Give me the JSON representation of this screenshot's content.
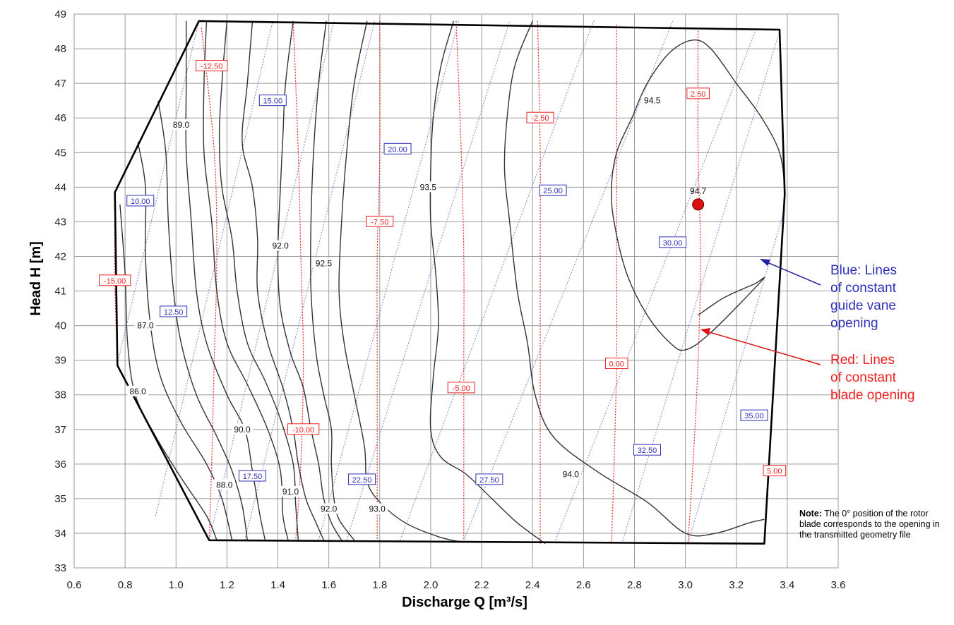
{
  "chart_data": {
    "type": "contour",
    "xlabel": "Discharge Q [m³/s]",
    "ylabel": "Head H [m]",
    "xlim": [
      0.6,
      3.6
    ],
    "ylim": [
      33,
      49
    ],
    "x_ticks": [
      "0.6",
      "0.8",
      "1.0",
      "1.2",
      "1.4",
      "1.6",
      "1.8",
      "2.0",
      "2.2",
      "2.4",
      "2.6",
      "2.8",
      "3.0",
      "3.2",
      "3.4",
      "3.6"
    ],
    "y_ticks": [
      "33",
      "34",
      "35",
      "36",
      "37",
      "38",
      "39",
      "40",
      "41",
      "42",
      "43",
      "44",
      "45",
      "46",
      "47",
      "48",
      "49"
    ],
    "grid": true,
    "operating_envelope": [
      [
        1.09,
        48.8
      ],
      [
        3.37,
        48.55
      ],
      [
        3.39,
        43.8
      ],
      [
        3.31,
        33.7
      ],
      [
        1.13,
        33.8
      ],
      [
        0.77,
        38.85
      ],
      [
        0.76,
        43.85
      ]
    ],
    "efficiency_contours": [
      {
        "label": "86.0",
        "points": [
          [
            0.78,
            43.5
          ],
          [
            0.8,
            41.5
          ],
          [
            0.81,
            39.5
          ],
          [
            0.84,
            38.0
          ],
          [
            0.92,
            36.8
          ],
          [
            1.02,
            35.6
          ],
          [
            1.12,
            34.5
          ],
          [
            1.16,
            33.8
          ]
        ]
      },
      {
        "label": "87.0",
        "points": [
          [
            0.85,
            45.3
          ],
          [
            0.88,
            44.0
          ],
          [
            0.88,
            42.0
          ],
          [
            0.9,
            40.0
          ],
          [
            0.94,
            38.5
          ],
          [
            1.02,
            37.2
          ],
          [
            1.12,
            36.0
          ],
          [
            1.18,
            35.0
          ],
          [
            1.22,
            33.8
          ]
        ]
      },
      {
        "label": "88.0",
        "points": [
          [
            0.93,
            46.5
          ],
          [
            0.96,
            45.0
          ],
          [
            0.97,
            43.0
          ],
          [
            0.99,
            41.0
          ],
          [
            1.02,
            39.5
          ],
          [
            1.08,
            38.0
          ],
          [
            1.16,
            36.8
          ],
          [
            1.22,
            35.8
          ],
          [
            1.26,
            34.8
          ],
          [
            1.28,
            33.8
          ]
        ]
      },
      {
        "label": "89.0",
        "points": [
          [
            1.04,
            48.8
          ],
          [
            1.04,
            47.0
          ],
          [
            1.04,
            45.0
          ],
          [
            1.06,
            43.0
          ],
          [
            1.08,
            41.0
          ],
          [
            1.12,
            39.5
          ],
          [
            1.2,
            38.0
          ],
          [
            1.27,
            37.0
          ],
          [
            1.3,
            35.8
          ],
          [
            1.33,
            34.5
          ],
          [
            1.35,
            33.8
          ]
        ]
      },
      {
        "label": "90.0",
        "points": [
          [
            1.12,
            48.8
          ],
          [
            1.11,
            47.0
          ],
          [
            1.11,
            45.0
          ],
          [
            1.14,
            43.0
          ],
          [
            1.16,
            41.0
          ],
          [
            1.2,
            39.5
          ],
          [
            1.28,
            38.3
          ],
          [
            1.36,
            37.0
          ],
          [
            1.41,
            35.8
          ],
          [
            1.42,
            34.5
          ],
          [
            1.44,
            33.8
          ]
        ]
      },
      {
        "label": "91.0",
        "points": [
          [
            1.2,
            48.8
          ],
          [
            1.18,
            47.0
          ],
          [
            1.17,
            45.5
          ],
          [
            1.18,
            44.0
          ],
          [
            1.22,
            42.5
          ],
          [
            1.24,
            41.0
          ],
          [
            1.28,
            39.5
          ],
          [
            1.35,
            38.4
          ],
          [
            1.41,
            37.3
          ],
          [
            1.46,
            36.0
          ],
          [
            1.47,
            34.8
          ],
          [
            1.48,
            33.8
          ]
        ]
      },
      {
        "label": "92.0",
        "points": [
          [
            1.3,
            48.8
          ],
          [
            1.28,
            47.0
          ],
          [
            1.26,
            45.3
          ],
          [
            1.3,
            44.0
          ],
          [
            1.32,
            42.5
          ],
          [
            1.32,
            41.0
          ],
          [
            1.36,
            39.5
          ],
          [
            1.42,
            38.2
          ],
          [
            1.46,
            37.0
          ],
          [
            1.48,
            36.0
          ],
          [
            1.51,
            35.0
          ],
          [
            1.55,
            34.3
          ],
          [
            1.58,
            33.8
          ]
        ]
      },
      {
        "label": "92.0",
        "points": [
          [
            1.46,
            48.8
          ],
          [
            1.43,
            47.0
          ],
          [
            1.42,
            45.5
          ],
          [
            1.41,
            44.0
          ],
          [
            1.4,
            42.0
          ],
          [
            1.41,
            40.5
          ],
          [
            1.45,
            39.2
          ],
          [
            1.5,
            38.2
          ],
          [
            1.53,
            37.0
          ],
          [
            1.56,
            36.0
          ],
          [
            1.58,
            35.0
          ],
          [
            1.61,
            34.3
          ],
          [
            1.65,
            33.8
          ]
        ]
      },
      {
        "label": "92.5",
        "points": [
          [
            1.59,
            48.8
          ],
          [
            1.56,
            47.0
          ],
          [
            1.54,
            45.0
          ],
          [
            1.53,
            43.0
          ],
          [
            1.53,
            41.0
          ],
          [
            1.55,
            39.2
          ],
          [
            1.58,
            38.0
          ],
          [
            1.61,
            37.0
          ],
          [
            1.61,
            36.0
          ],
          [
            1.62,
            35.0
          ],
          [
            1.64,
            34.4
          ],
          [
            1.7,
            33.8
          ]
        ]
      },
      {
        "label": "93.0",
        "points": [
          [
            1.75,
            48.8
          ],
          [
            1.7,
            47.0
          ],
          [
            1.67,
            45.0
          ],
          [
            1.65,
            43.0
          ],
          [
            1.64,
            41.0
          ],
          [
            1.66,
            39.5
          ],
          [
            1.7,
            38.0
          ],
          [
            1.74,
            36.5
          ],
          [
            1.75,
            35.5
          ],
          [
            1.8,
            34.9
          ],
          [
            1.9,
            34.3
          ],
          [
            2.03,
            33.9
          ],
          [
            2.12,
            33.75
          ]
        ]
      },
      {
        "label": "93.5",
        "points": [
          [
            2.09,
            48.8
          ],
          [
            2.04,
            47.5
          ],
          [
            2.01,
            46.0
          ],
          [
            2.0,
            44.5
          ],
          [
            2.0,
            43.0
          ],
          [
            2.02,
            41.5
          ],
          [
            2.03,
            40.0
          ],
          [
            2.01,
            38.5
          ],
          [
            2.0,
            37.0
          ],
          [
            2.04,
            36.2
          ],
          [
            2.14,
            35.7
          ],
          [
            2.24,
            35.0
          ],
          [
            2.34,
            34.3
          ],
          [
            2.45,
            33.7
          ]
        ]
      },
      {
        "label": "94.0",
        "points": [
          [
            2.4,
            48.8
          ],
          [
            2.33,
            47.5
          ],
          [
            2.3,
            46.0
          ],
          [
            2.29,
            44.5
          ],
          [
            2.31,
            43.0
          ],
          [
            2.34,
            41.0
          ],
          [
            2.38,
            39.5
          ],
          [
            2.41,
            38.0
          ],
          [
            2.48,
            36.8
          ],
          [
            2.65,
            35.8
          ],
          [
            2.85,
            34.9
          ],
          [
            3.0,
            34.0
          ],
          [
            3.12,
            34.0
          ],
          [
            3.25,
            34.3
          ],
          [
            3.31,
            34.4
          ]
        ]
      },
      {
        "label": "94.5",
        "points": [
          [
            3.05,
            40.3
          ],
          [
            3.15,
            40.8
          ],
          [
            3.27,
            41.2
          ],
          [
            3.3,
            41.3
          ],
          [
            3.1,
            39.8
          ],
          [
            3.0,
            39.3
          ],
          [
            2.94,
            39.5
          ],
          [
            2.85,
            40.3
          ],
          [
            2.77,
            41.5
          ],
          [
            2.72,
            43.0
          ],
          [
            2.71,
            44.0
          ],
          [
            2.73,
            45.0
          ],
          [
            2.79,
            46.0
          ],
          [
            2.85,
            47.0
          ],
          [
            2.94,
            47.9
          ],
          [
            3.03,
            48.25
          ],
          [
            3.1,
            48.0
          ],
          [
            3.2,
            47.0
          ],
          [
            3.3,
            46.0
          ],
          [
            3.37,
            45.0
          ],
          [
            3.39,
            44.0
          ]
        ]
      }
    ],
    "efficiency_label_positions": [
      [
        0.85,
        38.1
      ],
      [
        0.88,
        40.0
      ],
      [
        1.19,
        35.4
      ],
      [
        1.02,
        45.8
      ],
      [
        1.26,
        37.0
      ],
      [
        1.45,
        35.2
      ],
      [
        1.41,
        42.3
      ],
      [
        1.6,
        34.7
      ],
      [
        1.58,
        41.8
      ],
      [
        1.79,
        34.7
      ],
      [
        1.99,
        44.0
      ],
      [
        2.55,
        35.7
      ],
      [
        2.87,
        46.5
      ]
    ],
    "guide_vane_opening_lines": [
      {
        "label": "10.00",
        "label_at": [
          0.86,
          43.6
        ],
        "points": [
          [
            0.77,
            38.9
          ],
          [
            1.09,
            48.8
          ]
        ]
      },
      {
        "label": "12.50",
        "label_at": [
          0.99,
          40.4
        ],
        "points": [
          [
            0.92,
            34.5
          ],
          [
            1.38,
            48.8
          ]
        ]
      },
      {
        "label": "15.00",
        "label_at": [
          1.38,
          46.5
        ],
        "points": [
          [
            1.13,
            33.8
          ],
          [
            1.62,
            48.8
          ]
        ]
      },
      {
        "label": "17.50",
        "label_at": [
          1.3,
          35.65
        ],
        "points": [
          [
            1.27,
            33.8
          ],
          [
            1.78,
            48.8
          ]
        ]
      },
      {
        "label": "20.00",
        "label_at": [
          1.87,
          45.1
        ],
        "points": [
          [
            1.56,
            33.8
          ],
          [
            2.11,
            48.8
          ]
        ]
      },
      {
        "label": "22.50",
        "label_at": [
          1.73,
          35.55
        ],
        "points": [
          [
            1.67,
            33.8
          ],
          [
            2.31,
            48.8
          ]
        ]
      },
      {
        "label": "25.00",
        "label_at": [
          2.48,
          43.9
        ],
        "points": [
          [
            1.88,
            33.8
          ],
          [
            2.64,
            48.8
          ]
        ]
      },
      {
        "label": "27.50",
        "label_at": [
          2.23,
          35.55
        ],
        "points": [
          [
            2.13,
            33.8
          ],
          [
            2.95,
            48.8
          ]
        ]
      },
      {
        "label": "30.00",
        "label_at": [
          2.95,
          42.4
        ],
        "points": [
          [
            2.49,
            33.8
          ],
          [
            3.28,
            48.6
          ]
        ]
      },
      {
        "label": "32.50",
        "label_at": [
          2.85,
          36.4
        ],
        "points": [
          [
            2.75,
            33.7
          ],
          [
            3.37,
            48.5
          ]
        ]
      },
      {
        "label": "35.00",
        "label_at": [
          3.27,
          37.4
        ],
        "points": [
          [
            3.01,
            33.7
          ],
          [
            3.39,
            43.4
          ]
        ]
      }
    ],
    "blade_opening_lines": [
      {
        "label": "-15.00",
        "label_at": [
          0.76,
          41.3
        ],
        "points": [
          [
            0.76,
            43.6
          ],
          [
            0.76,
            41.2
          ],
          [
            0.77,
            39.0
          ]
        ]
      },
      {
        "label": "-12.50",
        "label_at": [
          1.14,
          47.5
        ],
        "points": [
          [
            1.1,
            48.6
          ],
          [
            1.15,
            45.0
          ],
          [
            1.16,
            42.0
          ],
          [
            1.15,
            39.0
          ],
          [
            1.14,
            36.0
          ],
          [
            1.13,
            33.8
          ]
        ]
      },
      {
        "label": "-10.00",
        "label_at": [
          1.5,
          37.0
        ],
        "points": [
          [
            1.46,
            48.8
          ],
          [
            1.48,
            45.0
          ],
          [
            1.49,
            42.0
          ],
          [
            1.5,
            39.0
          ],
          [
            1.49,
            36.0
          ],
          [
            1.47,
            33.8
          ]
        ]
      },
      {
        "label": "-7.50",
        "label_at": [
          1.8,
          43.0
        ],
        "points": [
          [
            1.8,
            48.8
          ],
          [
            1.8,
            45.0
          ],
          [
            1.79,
            42.0
          ],
          [
            1.79,
            39.0
          ],
          [
            1.79,
            36.0
          ],
          [
            1.79,
            33.8
          ]
        ]
      },
      {
        "label": "-5.00",
        "label_at": [
          2.12,
          38.2
        ],
        "points": [
          [
            2.1,
            48.8
          ],
          [
            2.12,
            45.0
          ],
          [
            2.13,
            42.0
          ],
          [
            2.13,
            39.0
          ],
          [
            2.13,
            36.0
          ],
          [
            2.13,
            33.8
          ]
        ]
      },
      {
        "label": "-2.50",
        "label_at": [
          2.43,
          46.0
        ],
        "points": [
          [
            2.42,
            48.8
          ],
          [
            2.43,
            45.0
          ],
          [
            2.43,
            42.0
          ],
          [
            2.43,
            39.0
          ],
          [
            2.43,
            36.0
          ],
          [
            2.43,
            33.7
          ]
        ]
      },
      {
        "label": "0.00",
        "label_at": [
          2.73,
          38.9
        ],
        "points": [
          [
            2.73,
            48.7
          ],
          [
            2.73,
            45.0
          ],
          [
            2.73,
            42.0
          ],
          [
            2.73,
            39.0
          ],
          [
            2.72,
            36.0
          ],
          [
            2.71,
            33.7
          ]
        ]
      },
      {
        "label": "2.50",
        "label_at": [
          3.05,
          46.7
        ],
        "points": [
          [
            3.05,
            48.6
          ],
          [
            3.05,
            45.0
          ],
          [
            3.06,
            42.0
          ],
          [
            3.05,
            39.0
          ],
          [
            3.03,
            36.0
          ],
          [
            3.01,
            33.7
          ]
        ]
      },
      {
        "label": "5.00",
        "label_at": [
          3.35,
          35.8
        ],
        "points": [
          [
            3.33,
            36.0
          ]
        ]
      }
    ],
    "best_efficiency_point": {
      "label": "94.7",
      "x": 3.05,
      "y": 43.5
    }
  },
  "annotations": {
    "blue_legend": [
      "Blue: Lines",
      "of constant",
      "guide vane",
      "opening"
    ],
    "red_legend": [
      "Red: Lines",
      "of constant",
      "blade opening"
    ],
    "note_bold": "Note:",
    "note_text": " The 0° position of the rotor blade corresponds to the opening in the transmitted geometry file"
  },
  "colors": {
    "efficiency": "#333333",
    "guide_vane": "#8080e0",
    "blade": "#ee2020",
    "blue_label": "#3030b8",
    "red_label": "#ee2020",
    "bep": "#dd1111",
    "grid": "#9a9a9a"
  }
}
